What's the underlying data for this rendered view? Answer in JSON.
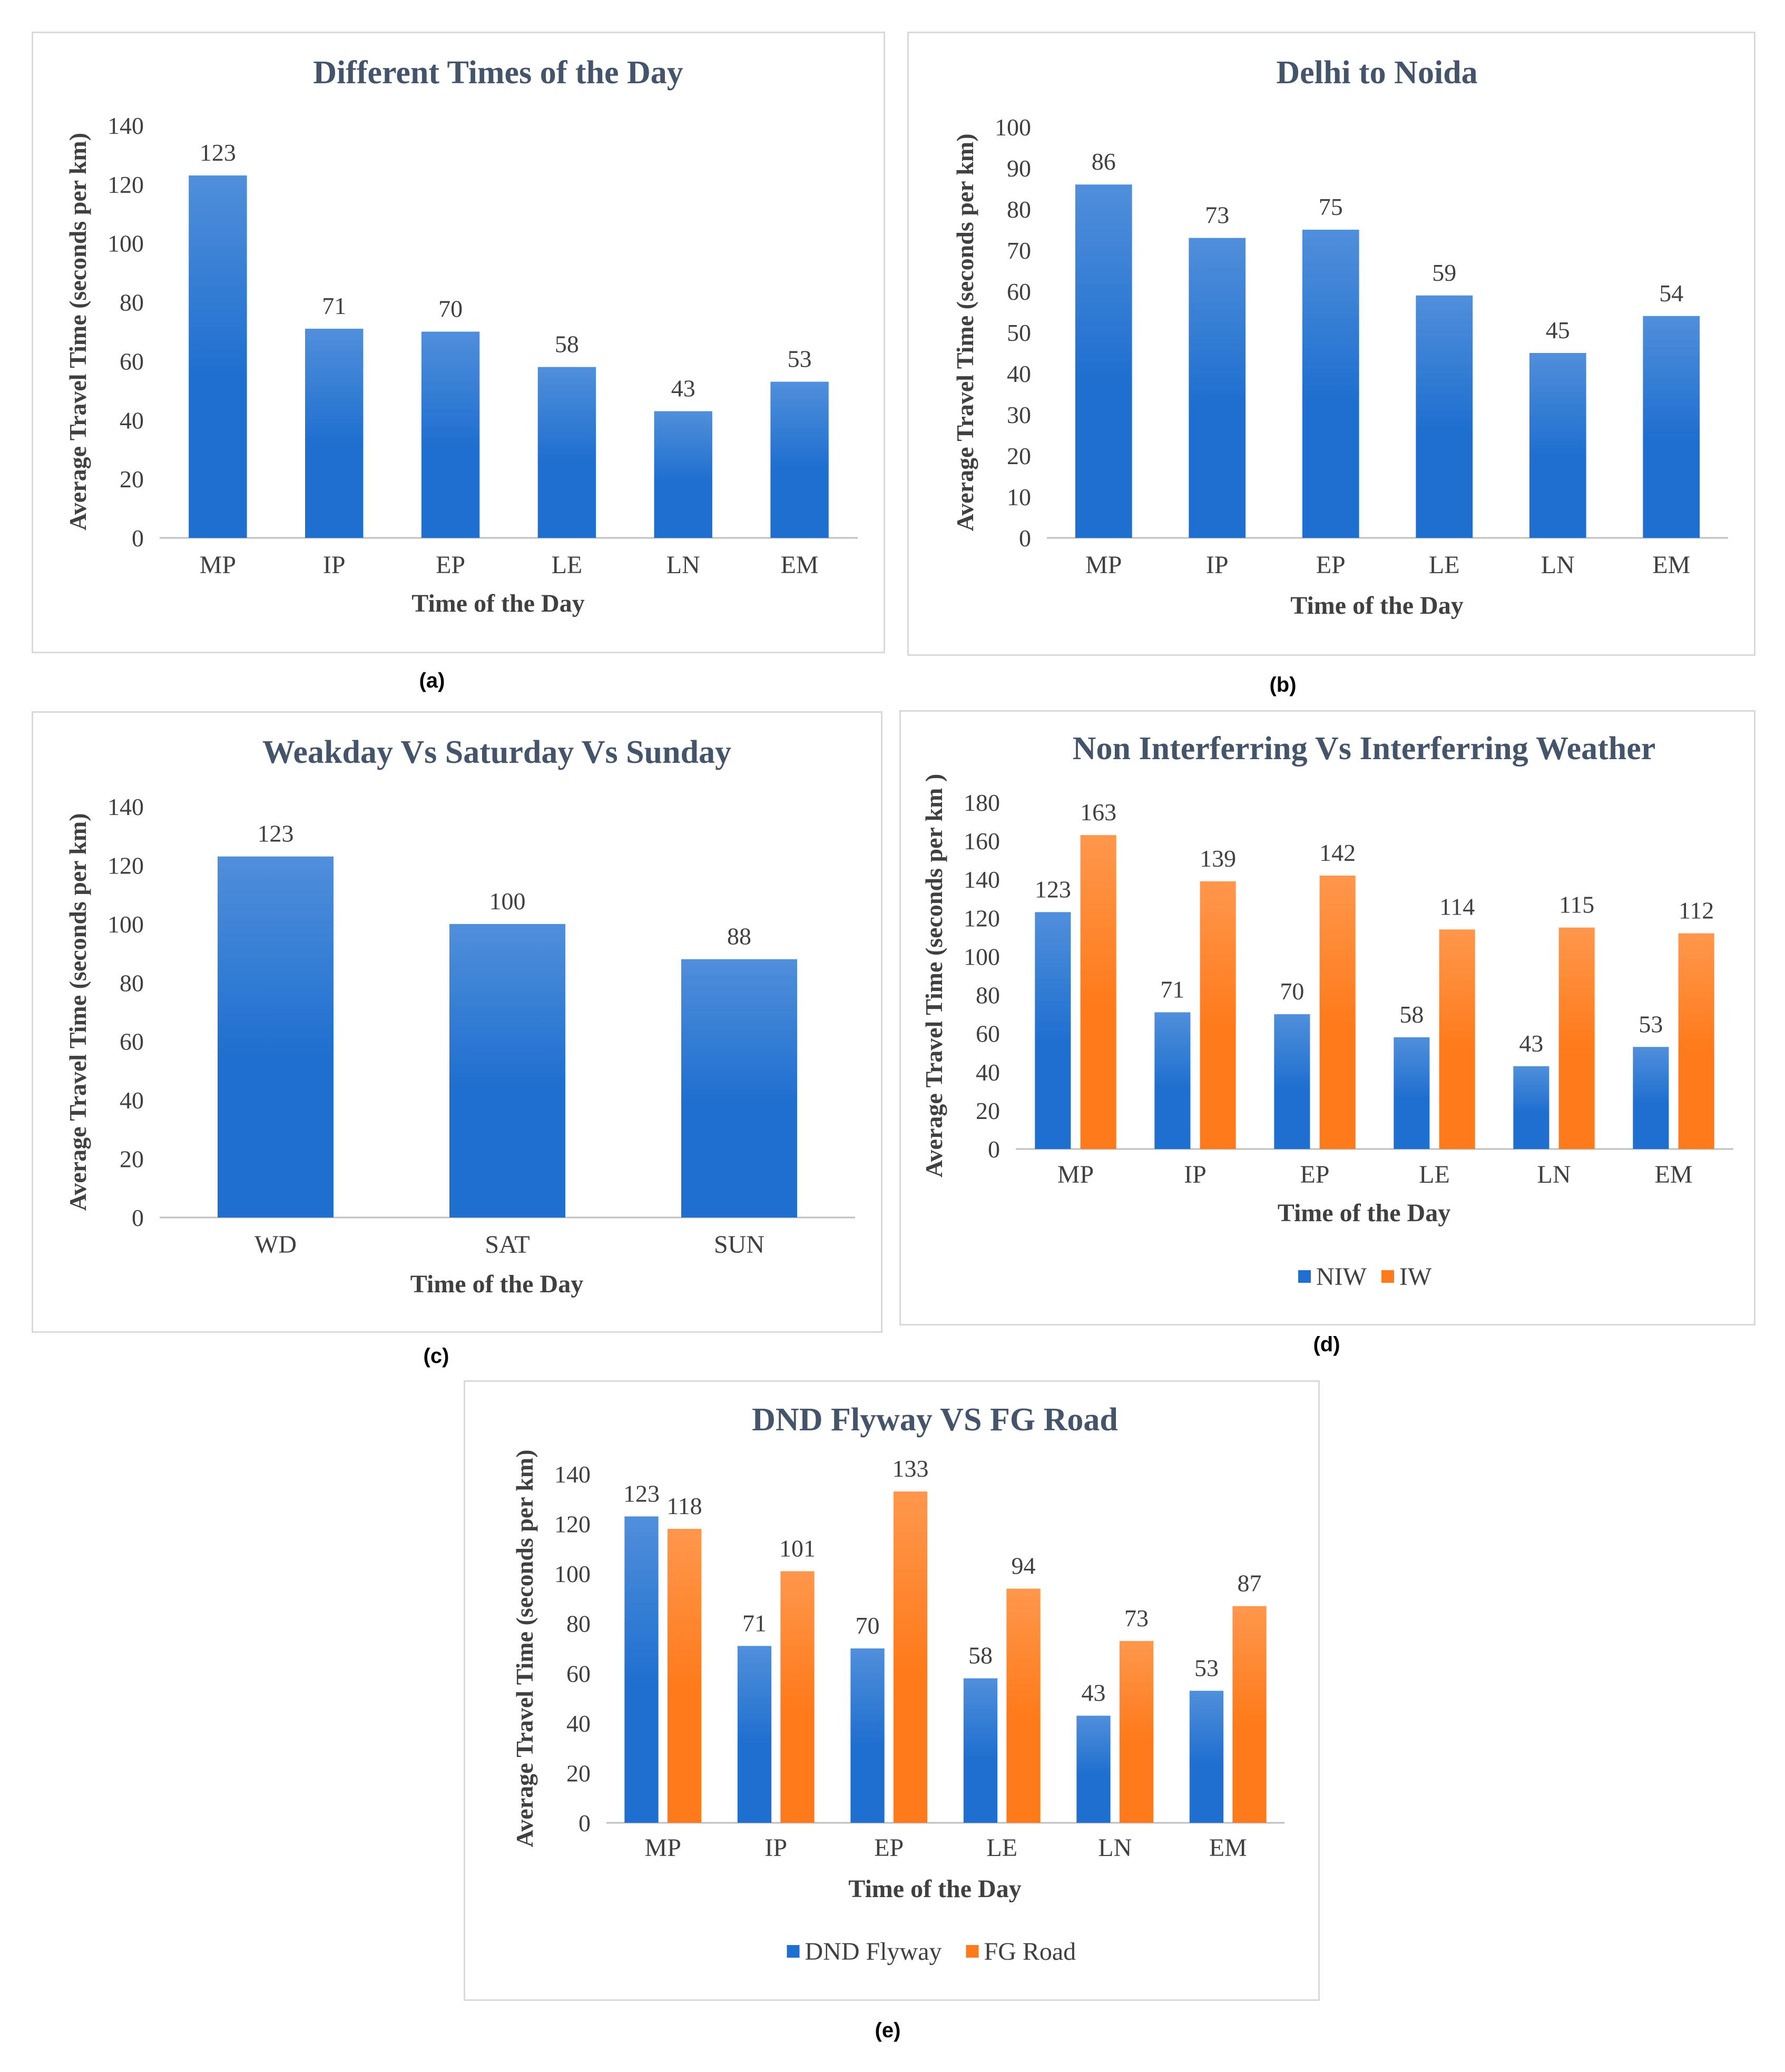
{
  "colors": {
    "blue": "#1f6fd0",
    "blue_light": "#4a8fe0",
    "orange": "#ff7a1a",
    "orange_light": "#ff9a55",
    "title": "#44546a",
    "text": "#404040",
    "axis": "#bfbfbf"
  },
  "captions": {
    "a": "(a)",
    "b": "(b)",
    "c": "(c)",
    "d": "(d)",
    "e": "(e)"
  },
  "chart_data": [
    {
      "id": "a",
      "type": "bar",
      "title": "Different Times of the Day",
      "xlabel": "Time of the Day",
      "ylabel": "Average Travel Time (seconds per km)",
      "ylim": [
        0,
        140
      ],
      "yticks": [
        0,
        20,
        40,
        60,
        80,
        100,
        120,
        140
      ],
      "categories": [
        "MP",
        "IP",
        "EP",
        "LE",
        "LN",
        "EM"
      ],
      "series": [
        {
          "values": [
            123,
            71,
            70,
            58,
            43,
            53
          ],
          "color": "#1f6fd0"
        }
      ],
      "legend": []
    },
    {
      "id": "b",
      "type": "bar",
      "title": "Delhi to Noida",
      "xlabel": "Time of the Day",
      "ylabel": "Average Travel Time (seconds per km)",
      "ylim": [
        0,
        100
      ],
      "yticks": [
        0,
        10,
        20,
        30,
        40,
        50,
        60,
        70,
        80,
        90,
        100
      ],
      "categories": [
        "MP",
        "IP",
        "EP",
        "LE",
        "LN",
        "EM"
      ],
      "series": [
        {
          "values": [
            86,
            73,
            75,
            59,
            45,
            54
          ],
          "color": "#1f6fd0"
        }
      ],
      "legend": []
    },
    {
      "id": "c",
      "type": "bar",
      "title": "Weakday  Vs Saturday  Vs Sunday",
      "xlabel": "Time of the Day",
      "ylabel": "Average Travel Time (seconds per km)",
      "ylim": [
        0,
        140
      ],
      "yticks": [
        0,
        20,
        40,
        60,
        80,
        100,
        120,
        140
      ],
      "categories": [
        "WD",
        "SAT",
        "SUN"
      ],
      "series": [
        {
          "values": [
            123,
            100,
            88
          ],
          "color": "#1f6fd0"
        }
      ],
      "legend": []
    },
    {
      "id": "d",
      "type": "bar",
      "title": "Non Interferring Vs Interferring Weather",
      "xlabel": "Time of the Day",
      "ylabel": "Average Travel Time (seconds per km )",
      "ylim": [
        0,
        180
      ],
      "yticks": [
        0,
        20,
        40,
        60,
        80,
        100,
        120,
        140,
        160,
        180
      ],
      "categories": [
        "MP",
        "IP",
        "EP",
        "LE",
        "LN",
        "EM"
      ],
      "series": [
        {
          "name": "NIW",
          "values": [
            123,
            71,
            70,
            58,
            43,
            53
          ],
          "color": "#1f6fd0"
        },
        {
          "name": "IW",
          "values": [
            163,
            139,
            142,
            114,
            115,
            112
          ],
          "color": "#ff7a1a"
        }
      ],
      "legend": [
        "NIW",
        "IW"
      ]
    },
    {
      "id": "e",
      "type": "bar",
      "title": "DND Flyway  VS FG Road",
      "xlabel": "Time of the Day",
      "ylabel": "Average Travel Time (seconds per km)",
      "ylim": [
        0,
        140
      ],
      "yticks": [
        0,
        20,
        40,
        60,
        80,
        100,
        120,
        140
      ],
      "categories": [
        "MP",
        "IP",
        "EP",
        "LE",
        "LN",
        "EM"
      ],
      "series": [
        {
          "name": "DND Flyway",
          "values": [
            123,
            71,
            70,
            58,
            43,
            53
          ],
          "color": "#1f6fd0"
        },
        {
          "name": "FG Road",
          "values": [
            118,
            101,
            133,
            94,
            73,
            87
          ],
          "color": "#ff7a1a"
        }
      ],
      "legend": [
        "DND Flyway",
        "FG Road"
      ]
    }
  ]
}
